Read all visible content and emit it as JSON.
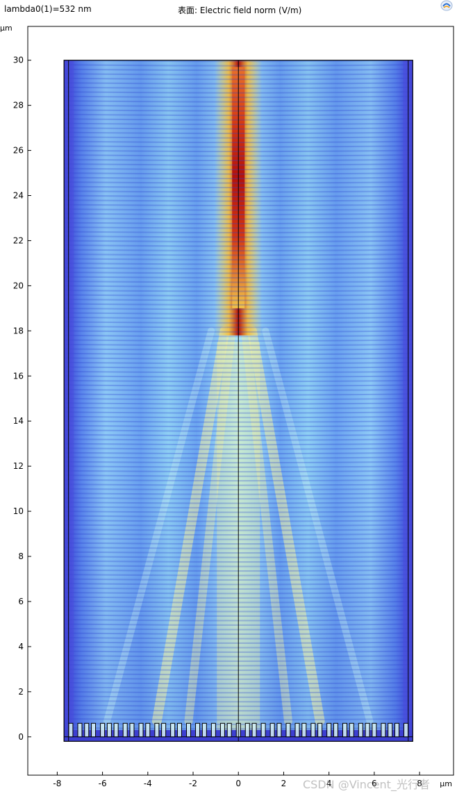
{
  "header": {
    "parameter": "lambda0(1)=532 nm",
    "title": "表面: Electric field norm (V/m)"
  },
  "watermark": "CSDN @Vincent_光行者",
  "chart_data": {
    "type": "heatmap",
    "title": "表面: Electric field norm (V/m)",
    "parameter_label": "lambda0(1)=532 nm",
    "xlabel": "µm",
    "ylabel": "µm",
    "xlim": [
      -9.3,
      9.5
    ],
    "ylim": [
      -1.7,
      31.5
    ],
    "x_ticks": [
      -8,
      -6,
      -4,
      -2,
      0,
      2,
      4,
      6,
      8
    ],
    "y_ticks": [
      0,
      2,
      4,
      6,
      8,
      10,
      12,
      14,
      16,
      18,
      20,
      22,
      24,
      26,
      28,
      30
    ],
    "domain": {
      "x": [
        -7.7,
        7.7
      ],
      "y": [
        -0.2,
        30
      ]
    },
    "field_region_y": [
      0.4,
      30
    ],
    "center_line_x": 0,
    "focal_hotspot": {
      "x": 0,
      "y_range": [
        19,
        30
      ],
      "peak_y": 24
    },
    "metalens_pillars_x": [
      -7.4,
      -7.0,
      -6.7,
      -6.4,
      -6.0,
      -5.7,
      -5.4,
      -5.0,
      -4.7,
      -4.3,
      -4.0,
      -3.6,
      -3.3,
      -2.9,
      -2.6,
      -2.2,
      -1.8,
      -1.5,
      -1.1,
      -0.7,
      -0.4,
      0.0,
      0.4,
      0.7,
      1.1,
      1.5,
      1.8,
      2.2,
      2.6,
      2.9,
      3.3,
      3.6,
      4.0,
      4.3,
      4.7,
      5.0,
      5.4,
      5.7,
      6.0,
      6.4,
      6.7,
      7.0,
      7.4
    ],
    "colormap": [
      "#3a2fd6",
      "#4f63e8",
      "#7db4f6",
      "#bfe6f5",
      "#f2f0a4",
      "#f6c13a",
      "#e2551a",
      "#b3120b"
    ],
    "grid": false,
    "legend": "none"
  }
}
